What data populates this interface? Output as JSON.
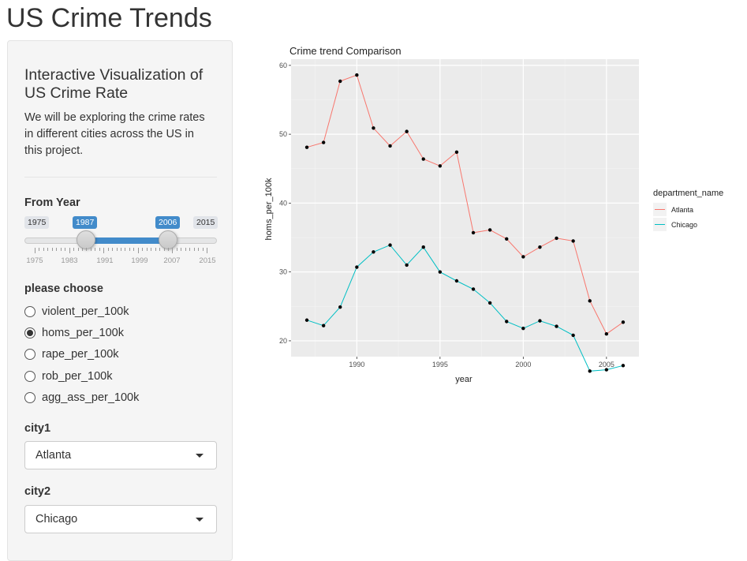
{
  "header": {
    "title": "US Crime Trends"
  },
  "sidebar": {
    "title": "Interactive Visualization of US Crime Rate",
    "description": "We will be exploring the crime rates in different cities across the US in this project.",
    "year_slider": {
      "label": "From Year",
      "min_label": "1975",
      "max_label": "2015",
      "value_from": "1987",
      "value_to": "2006",
      "range_min": 1975,
      "range_max": 2015,
      "tick_labels": [
        "1975",
        "1983",
        "1991",
        "1999",
        "2007",
        "2015"
      ]
    },
    "metric": {
      "label": "please choose",
      "options": [
        "violent_per_100k",
        "homs_per_100k",
        "rape_per_100k",
        "rob_per_100k",
        "agg_ass_per_100k"
      ],
      "selected": "homs_per_100k"
    },
    "city1": {
      "label": "city1",
      "value": "Atlanta"
    },
    "city2": {
      "label": "city2",
      "value": "Chicago"
    }
  },
  "chart_data": {
    "type": "line",
    "title": "Crime trend Comparison",
    "xlabel": "year",
    "ylabel": "homs_per_100k",
    "xlim": [
      1986.05,
      2006.95
    ],
    "ylim": [
      17.7,
      60.9
    ],
    "x_ticks": [
      1990,
      1995,
      2000,
      2005
    ],
    "y_ticks": [
      20,
      30,
      40,
      50,
      60
    ],
    "grid": true,
    "legend_title": "department_name",
    "legend_position": "right",
    "x": [
      1987,
      1988,
      1989,
      1990,
      1991,
      1992,
      1993,
      1994,
      1995,
      1996,
      1997,
      1998,
      1999,
      2000,
      2001,
      2002,
      2003,
      2004,
      2005,
      2006
    ],
    "series": [
      {
        "name": "Atlanta",
        "color": "#F8766D",
        "values": [
          48.1,
          48.8,
          57.7,
          58.6,
          50.9,
          48.3,
          50.4,
          46.4,
          45.4,
          47.4,
          35.7,
          36.1,
          34.8,
          32.2,
          33.6,
          34.9,
          34.5,
          25.8,
          21.0,
          22.7
        ]
      },
      {
        "name": "Chicago",
        "color": "#00BFC4",
        "values": [
          23.0,
          22.2,
          24.9,
          30.7,
          32.9,
          33.9,
          31.0,
          33.6,
          30.0,
          28.7,
          27.5,
          25.5,
          22.8,
          21.8,
          22.9,
          22.1,
          20.8,
          15.6,
          15.8,
          16.4
        ]
      }
    ]
  }
}
